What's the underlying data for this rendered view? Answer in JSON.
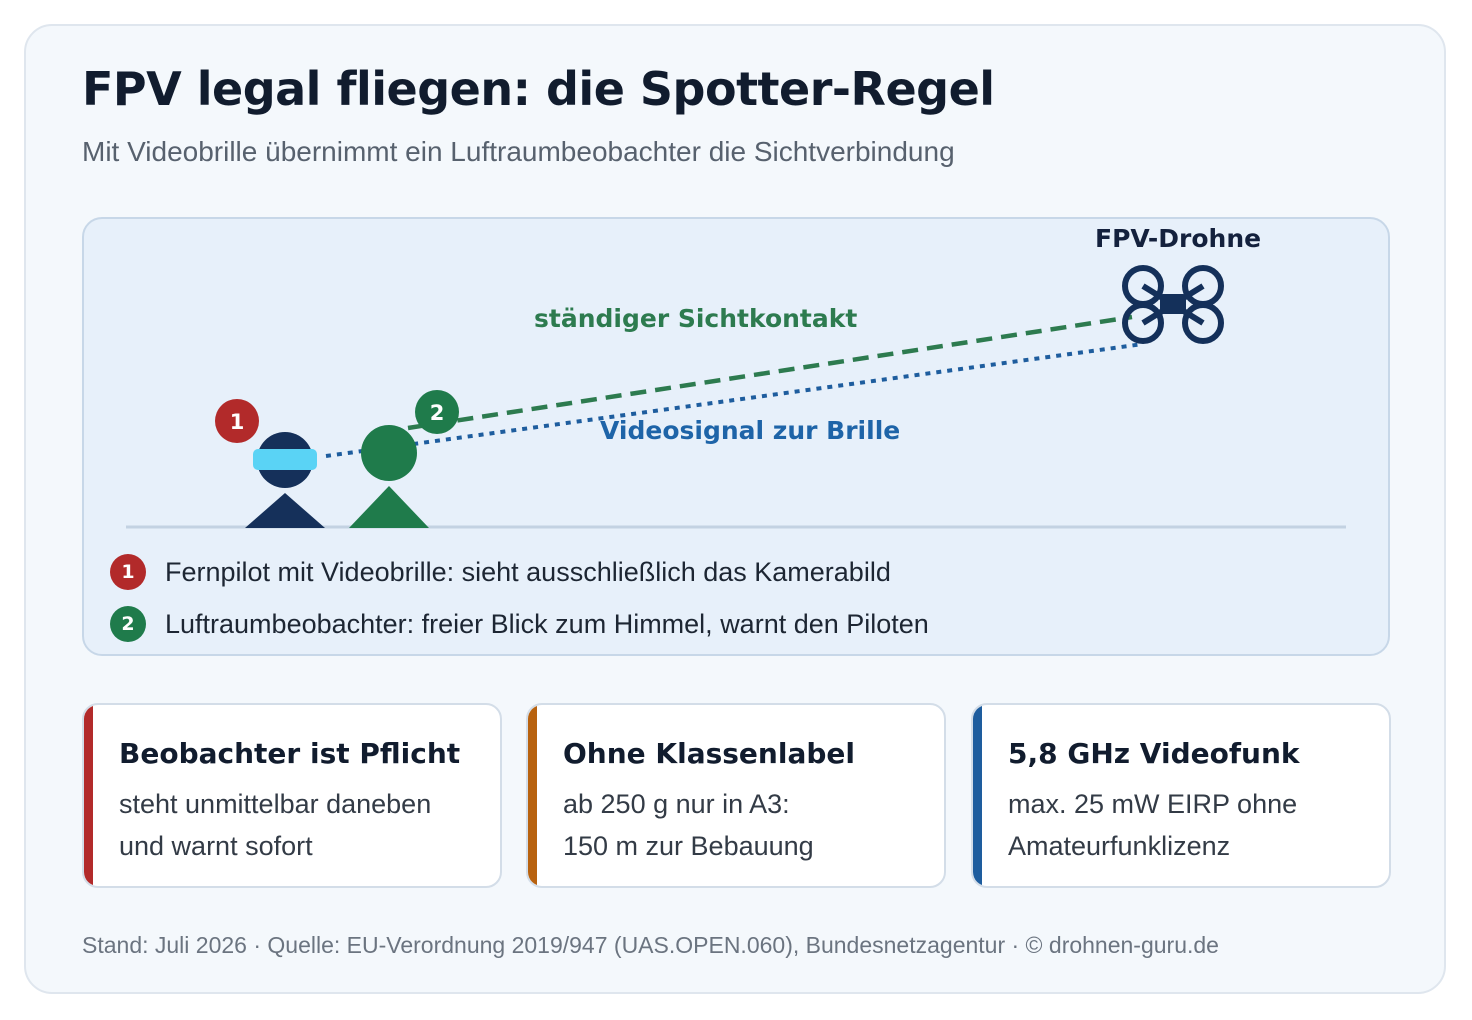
{
  "header": {
    "title": "FPV legal fliegen: die Spotter-Regel",
    "subtitle": "Mit Videobrille übernimmt ein Luftraumbeobachter die Sichtverbindung"
  },
  "diagram": {
    "drone_label": "FPV-Drohne",
    "sight_line_label": "ständiger Sichtkontakt",
    "video_line_label": "Videosignal zur Brille",
    "pilot_badge": "1",
    "observer_badge": "2",
    "legend": [
      {
        "badge": "1",
        "text": "Fernpilot mit Videobrille: sieht ausschließlich das Kamerabild"
      },
      {
        "badge": "2",
        "text": "Luftraumbeobachter: freier Blick zum Himmel, warnt den Piloten"
      }
    ]
  },
  "facts": [
    {
      "title": "Beobachter ist Pflicht",
      "line1": "steht unmittelbar daneben",
      "line2": "und warnt sofort",
      "accent": "#b22a2a"
    },
    {
      "title": "Ohne Klassenlabel",
      "line1": "ab 250 g nur in A3:",
      "line2": "150 m zur Bebauung",
      "accent": "#b8620f"
    },
    {
      "title": "5,8 GHz Videofunk",
      "line1": "max. 25 mW EIRP ohne",
      "line2": "Amateurfunklizenz",
      "accent": "#1e5d9e"
    }
  ],
  "footer": "Stand: Juli 2026 · Quelle: EU-Verordnung 2019/947 (UAS.OPEN.060), Bundesnetzagentur · © drohnen-guru.de",
  "colors": {
    "pilot": "#15305a",
    "goggles": "#5ad3f5",
    "observer": "#1f7b4b",
    "sight_line": "#2d7b4f",
    "video_line": "#1e5d9e",
    "drone": "#14305a",
    "badge_red": "#b22a2a"
  },
  "icons": [
    "pilot-figure-icon",
    "goggles-icon",
    "observer-figure-icon",
    "drone-icon"
  ]
}
